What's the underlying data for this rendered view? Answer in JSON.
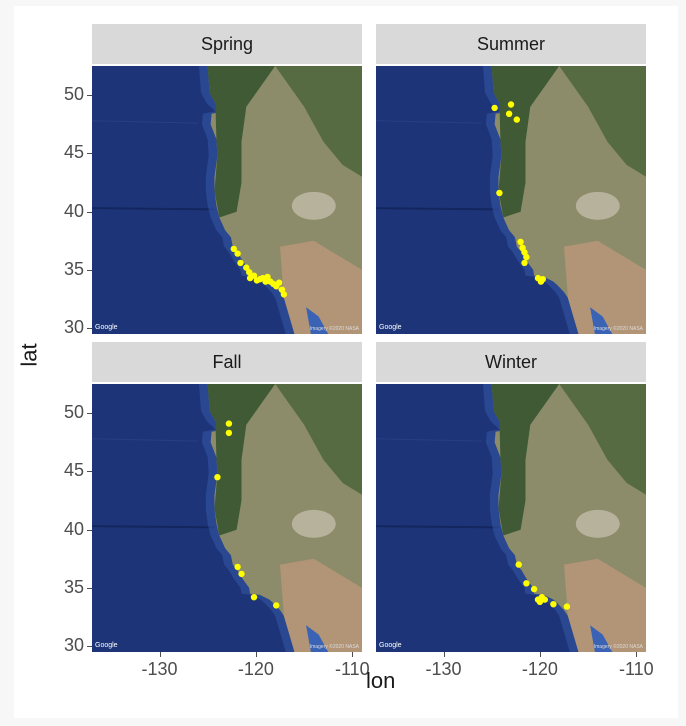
{
  "chart_data": {
    "type": "scatter",
    "xlabel": "lon",
    "ylabel": "lat",
    "xlim": [
      -137,
      -109
    ],
    "ylim": [
      29.5,
      52.5
    ],
    "x_ticks": [
      "-130",
      "-120",
      "-110"
    ],
    "y_ticks": [
      "30",
      "35",
      "40",
      "45",
      "50"
    ],
    "point_color": "#ffff00",
    "map_attribution": "Google",
    "imagery_credit": "Imagery ©2020 NASA",
    "panels": [
      {
        "title": "Spring",
        "points": [
          {
            "lon": -122.3,
            "lat": 36.8
          },
          {
            "lon": -121.9,
            "lat": 36.4
          },
          {
            "lon": -121.6,
            "lat": 35.6
          },
          {
            "lon": -121.0,
            "lat": 35.2
          },
          {
            "lon": -120.7,
            "lat": 34.8
          },
          {
            "lon": -120.6,
            "lat": 34.3
          },
          {
            "lon": -120.2,
            "lat": 34.5
          },
          {
            "lon": -119.9,
            "lat": 34.1
          },
          {
            "lon": -119.6,
            "lat": 34.2
          },
          {
            "lon": -119.3,
            "lat": 34.3
          },
          {
            "lon": -119.0,
            "lat": 34.0
          },
          {
            "lon": -118.8,
            "lat": 34.4
          },
          {
            "lon": -118.5,
            "lat": 34.0
          },
          {
            "lon": -118.2,
            "lat": 33.8
          },
          {
            "lon": -117.9,
            "lat": 33.6
          },
          {
            "lon": -117.6,
            "lat": 33.9
          },
          {
            "lon": -117.3,
            "lat": 33.3
          },
          {
            "lon": -117.1,
            "lat": 32.9
          }
        ]
      },
      {
        "title": "Summer",
        "points": [
          {
            "lon": -124.7,
            "lat": 48.9
          },
          {
            "lon": -123.0,
            "lat": 49.2
          },
          {
            "lon": -123.2,
            "lat": 48.4
          },
          {
            "lon": -122.4,
            "lat": 47.9
          },
          {
            "lon": -124.2,
            "lat": 41.6
          },
          {
            "lon": -122.0,
            "lat": 37.4
          },
          {
            "lon": -121.8,
            "lat": 36.9
          },
          {
            "lon": -121.6,
            "lat": 36.5
          },
          {
            "lon": -121.4,
            "lat": 36.1
          },
          {
            "lon": -121.6,
            "lat": 35.6
          },
          {
            "lon": -120.2,
            "lat": 34.3
          },
          {
            "lon": -119.9,
            "lat": 34.0
          },
          {
            "lon": -119.7,
            "lat": 34.2
          }
        ]
      },
      {
        "title": "Fall",
        "points": [
          {
            "lon": -122.8,
            "lat": 49.1
          },
          {
            "lon": -122.8,
            "lat": 48.3
          },
          {
            "lon": -124.0,
            "lat": 44.5
          },
          {
            "lon": -121.9,
            "lat": 36.8
          },
          {
            "lon": -121.5,
            "lat": 36.2
          },
          {
            "lon": -120.2,
            "lat": 34.2
          },
          {
            "lon": -117.9,
            "lat": 33.5
          }
        ]
      },
      {
        "title": "Winter",
        "points": [
          {
            "lon": -122.2,
            "lat": 37.0
          },
          {
            "lon": -121.4,
            "lat": 35.4
          },
          {
            "lon": -120.6,
            "lat": 34.9
          },
          {
            "lon": -120.2,
            "lat": 34.0
          },
          {
            "lon": -120.0,
            "lat": 33.8
          },
          {
            "lon": -119.8,
            "lat": 34.2
          },
          {
            "lon": -119.5,
            "lat": 34.0
          },
          {
            "lon": -118.6,
            "lat": 33.6
          },
          {
            "lon": -117.2,
            "lat": 33.4
          }
        ]
      }
    ]
  }
}
